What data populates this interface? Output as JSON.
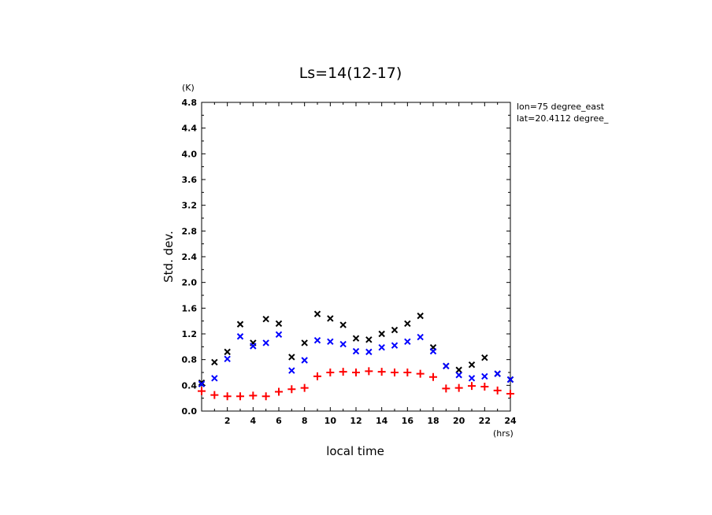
{
  "chart_data": {
    "type": "scatter",
    "title": "Ls=14(12-17)",
    "xlabel": "local time",
    "ylabel": "Std. dev.",
    "x_unit": "(hrs)",
    "y_unit": "(K)",
    "xlim": [
      0,
      24
    ],
    "ylim": [
      0,
      4.8
    ],
    "x_ticks": [
      2,
      4,
      6,
      8,
      10,
      12,
      14,
      16,
      18,
      20,
      22,
      24
    ],
    "y_ticks": [
      "0.0",
      "0.4",
      "0.8",
      "1.2",
      "1.6",
      "2.0",
      "2.4",
      "2.8",
      "3.2",
      "3.6",
      "4.0",
      "4.4",
      "4.8"
    ],
    "grid": false,
    "legend": "none",
    "annotations": [
      "lon=75 degree_east",
      "lat=20.4112 degree_"
    ],
    "series": [
      {
        "marker": "x",
        "color": "#000000",
        "x": [
          0,
          1,
          2,
          3,
          4,
          5,
          6,
          7,
          8,
          9,
          10,
          11,
          12,
          13,
          14,
          15,
          16,
          17,
          18,
          19,
          20,
          21,
          22,
          23,
          24
        ],
        "y": [
          0.44,
          0.76,
          0.92,
          1.35,
          1.06,
          1.43,
          1.36,
          0.84,
          1.06,
          1.51,
          1.44,
          1.34,
          1.13,
          1.11,
          1.2,
          1.26,
          1.36,
          1.48,
          0.99,
          0.7,
          0.64,
          0.72,
          0.83,
          0.58,
          0.49
        ]
      },
      {
        "marker": "x",
        "color": "#0000ff",
        "x": [
          0,
          1,
          2,
          3,
          4,
          5,
          6,
          7,
          8,
          9,
          10,
          11,
          12,
          13,
          14,
          15,
          16,
          17,
          18,
          19,
          20,
          21,
          22,
          23,
          24
        ],
        "y": [
          0.42,
          0.51,
          0.81,
          1.16,
          1.01,
          1.06,
          1.19,
          0.63,
          0.79,
          1.1,
          1.08,
          1.04,
          0.93,
          0.92,
          0.99,
          1.02,
          1.08,
          1.15,
          0.93,
          0.7,
          0.56,
          0.51,
          0.54,
          0.58,
          0.49
        ]
      },
      {
        "marker": "+",
        "color": "#ff0000",
        "x": [
          0,
          1,
          2,
          3,
          4,
          5,
          6,
          7,
          8,
          9,
          10,
          11,
          12,
          13,
          14,
          15,
          16,
          17,
          18,
          19,
          20,
          21,
          22,
          23,
          24
        ],
        "y": [
          0.31,
          0.25,
          0.23,
          0.23,
          0.24,
          0.23,
          0.3,
          0.34,
          0.36,
          0.54,
          0.6,
          0.61,
          0.6,
          0.62,
          0.61,
          0.6,
          0.6,
          0.58,
          0.53,
          0.35,
          0.36,
          0.39,
          0.38,
          0.32,
          0.27
        ]
      }
    ]
  }
}
